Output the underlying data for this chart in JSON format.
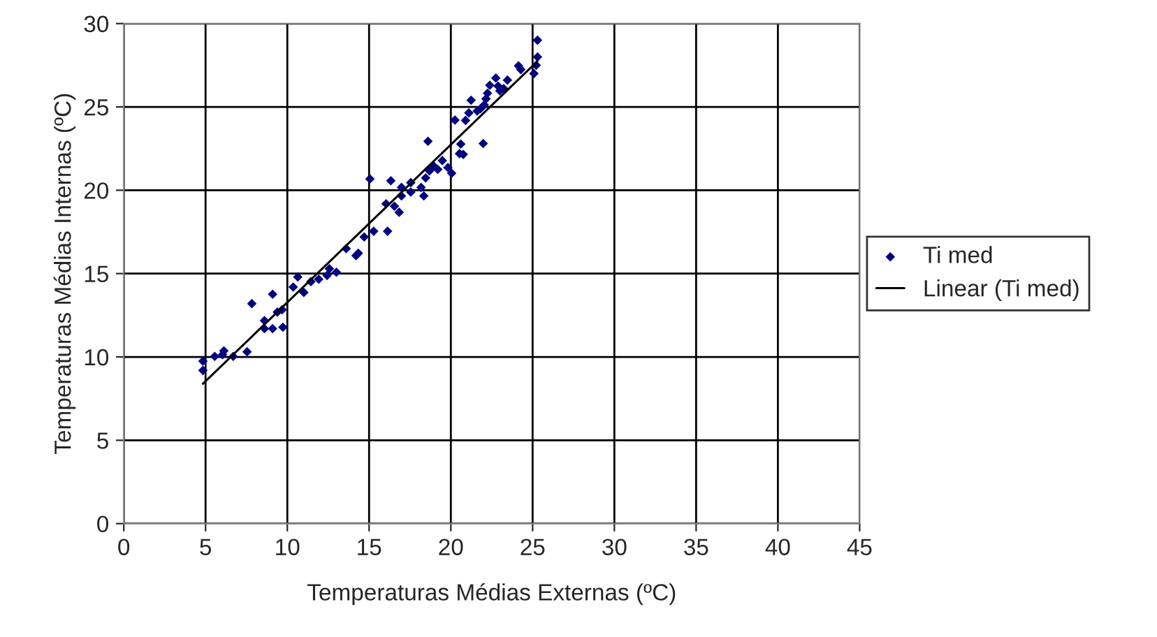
{
  "chart_data": {
    "type": "scatter",
    "xlabel": "Temperaturas Médias Externas (ºC)",
    "ylabel": "Temperaturas Médias Internas (ºC)",
    "xlim": [
      0,
      45
    ],
    "ylim": [
      0,
      30
    ],
    "xticks": [
      0,
      5,
      10,
      15,
      20,
      25,
      30,
      35,
      40,
      45
    ],
    "yticks": [
      0,
      5,
      10,
      15,
      20,
      25,
      30
    ],
    "grid": true,
    "legend": "right",
    "series": [
      {
        "name": "Ti med",
        "marker": "diamond",
        "color": "#000080",
        "x": [
          4.84,
          4.84,
          5.56,
          6.12,
          6.04,
          6.69,
          7.54,
          7.83,
          8.6,
          8.6,
          9.1,
          9.1,
          9.39,
          9.68,
          9.73,
          10.36,
          10.64,
          11.01,
          11.44,
          11.92,
          12.43,
          12.57,
          13.0,
          13.6,
          14.2,
          14.34,
          14.7,
          15.28,
          16.13,
          15.05,
          16.33,
          16.04,
          16.55,
          16.84,
          16.98,
          16.98,
          17.55,
          17.55,
          18.18,
          18.35,
          18.46,
          18.6,
          18.69,
          18.97,
          19.2,
          19.48,
          19.82,
          20.05,
          20.25,
          20.61,
          20.53,
          20.76,
          20.9,
          21.1,
          21.24,
          21.61,
          21.81,
          21.98,
          22.04,
          22.15,
          22.24,
          22.38,
          22.75,
          22.89,
          23.0,
          23.23,
          23.46,
          24.14,
          24.28,
          25.08,
          25.3,
          25.3,
          25.22
        ],
        "values": [
          9.75,
          9.19,
          10.03,
          10.37,
          10.14,
          10.03,
          10.31,
          13.2,
          12.18,
          11.7,
          13.76,
          11.7,
          12.69,
          12.83,
          11.78,
          14.19,
          14.8,
          13.87,
          14.52,
          14.66,
          14.89,
          15.29,
          15.08,
          16.5,
          16.08,
          16.22,
          17.2,
          17.54,
          17.54,
          20.68,
          20.57,
          19.19,
          19.04,
          18.68,
          20.17,
          19.66,
          20.46,
          19.89,
          20.17,
          19.66,
          20.74,
          22.94,
          21.16,
          21.44,
          21.25,
          21.78,
          21.36,
          21.02,
          24.21,
          22.77,
          22.2,
          22.15,
          24.19,
          24.64,
          25.4,
          24.75,
          24.89,
          22.8,
          25.12,
          25.48,
          25.82,
          26.3,
          26.73,
          26.25,
          25.97,
          26.1,
          26.61,
          27.46,
          27.24,
          27.0,
          28.0,
          29.0,
          27.5
        ]
      },
      {
        "name": "Linear (Ti med)",
        "type": "line",
        "color": "#000000",
        "line_style": "solid",
        "x": [
          4.84,
          25.3
        ],
        "values": [
          8.39,
          27.75
        ]
      }
    ]
  }
}
